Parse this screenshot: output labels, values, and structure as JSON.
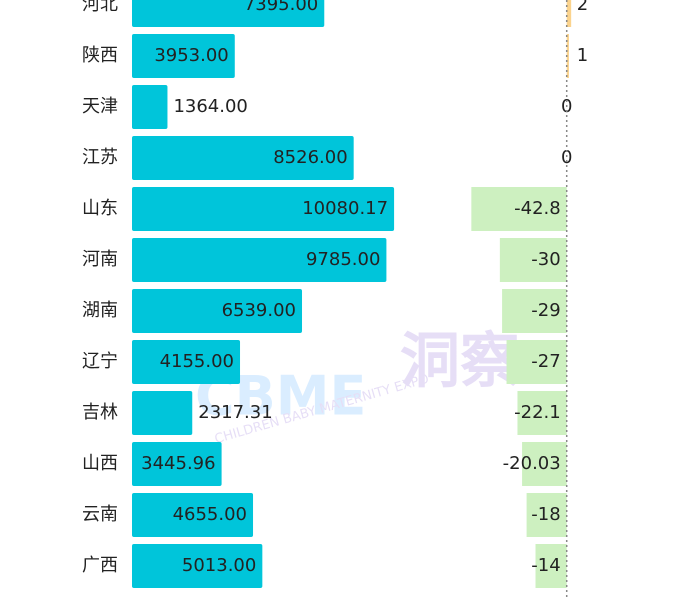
{
  "chart_data": [
    {
      "type": "hbar",
      "color": "#00c5da",
      "categories": [
        "河北",
        "陕西",
        "天津",
        "江苏",
        "山东",
        "河南",
        "湖南",
        "辽宁",
        "吉林",
        "山西",
        "云南",
        "广西"
      ],
      "values": [
        7395,
        3953,
        1364,
        8526,
        10080.17,
        9785,
        6539,
        4155,
        2317.31,
        3445.96,
        4655,
        5013
      ],
      "value_labels": [
        "7395.00",
        "3953.00",
        "1364.00",
        "8526.00",
        "10080.17",
        "9785.00",
        "6539.00",
        "4155.00",
        "2317.31",
        "3445.96",
        "4655.00",
        "5013.00"
      ],
      "xlim": [
        0,
        12000
      ]
    },
    {
      "type": "diverging",
      "positive_color": "#fbd38d",
      "negative_color": "#cdf0c0",
      "values": [
        2,
        1,
        0,
        0,
        -42.8,
        -30,
        -29,
        -27,
        -22.1,
        -20.03,
        -18,
        -14
      ],
      "xlim": [
        -60,
        10
      ]
    }
  ],
  "watermark": {
    "logo": "CBME",
    "brand": "洞察",
    "subtitle": "CHILDREN BABY MATERNITY EXPO"
  }
}
